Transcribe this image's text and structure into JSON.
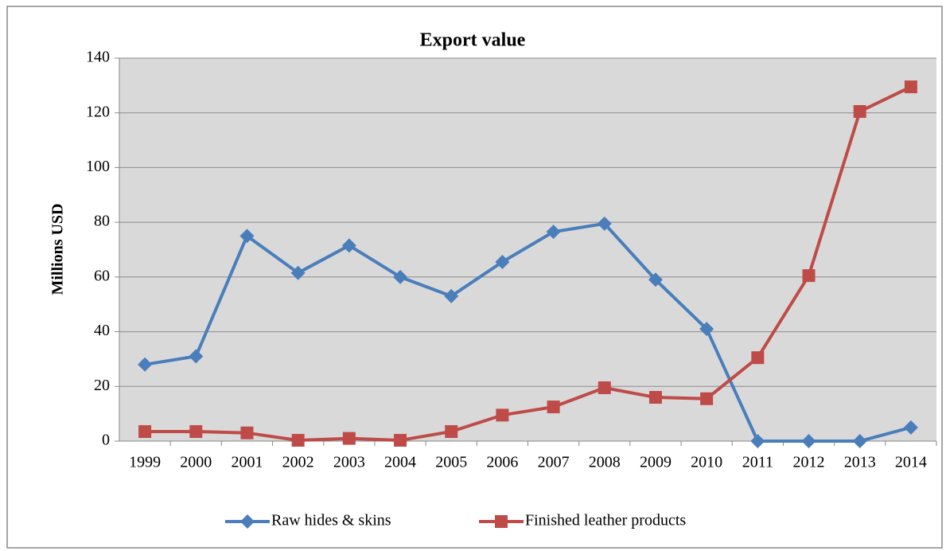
{
  "chart_data": {
    "type": "line",
    "title": "Export value",
    "y_label": "Millions  USD",
    "categories": [
      "1999",
      "2000",
      "2001",
      "2002",
      "2003",
      "2004",
      "2005",
      "2006",
      "2007",
      "2008",
      "2009",
      "2010",
      "2011",
      "2012",
      "2013",
      "2014"
    ],
    "series": [
      {
        "name": "Raw hides & skins",
        "color": "#4a7ebb",
        "marker": "diamond",
        "values": [
          28,
          31,
          75,
          61.5,
          71.5,
          60,
          53,
          65.5,
          76.5,
          79.5,
          59,
          41,
          0,
          0,
          0,
          5
        ]
      },
      {
        "name": "Finished leather products",
        "color": "#be4b48",
        "marker": "square",
        "values": [
          3.5,
          3.5,
          3,
          0.3,
          1,
          0.3,
          3.5,
          9.5,
          12.5,
          19.5,
          16,
          15.5,
          30.5,
          60.5,
          120.5,
          129.5
        ]
      }
    ],
    "ylim": [
      0,
      140
    ],
    "yticks": [
      0,
      20,
      40,
      60,
      80,
      100,
      120,
      140
    ],
    "grid": true,
    "legend": "bottom"
  }
}
